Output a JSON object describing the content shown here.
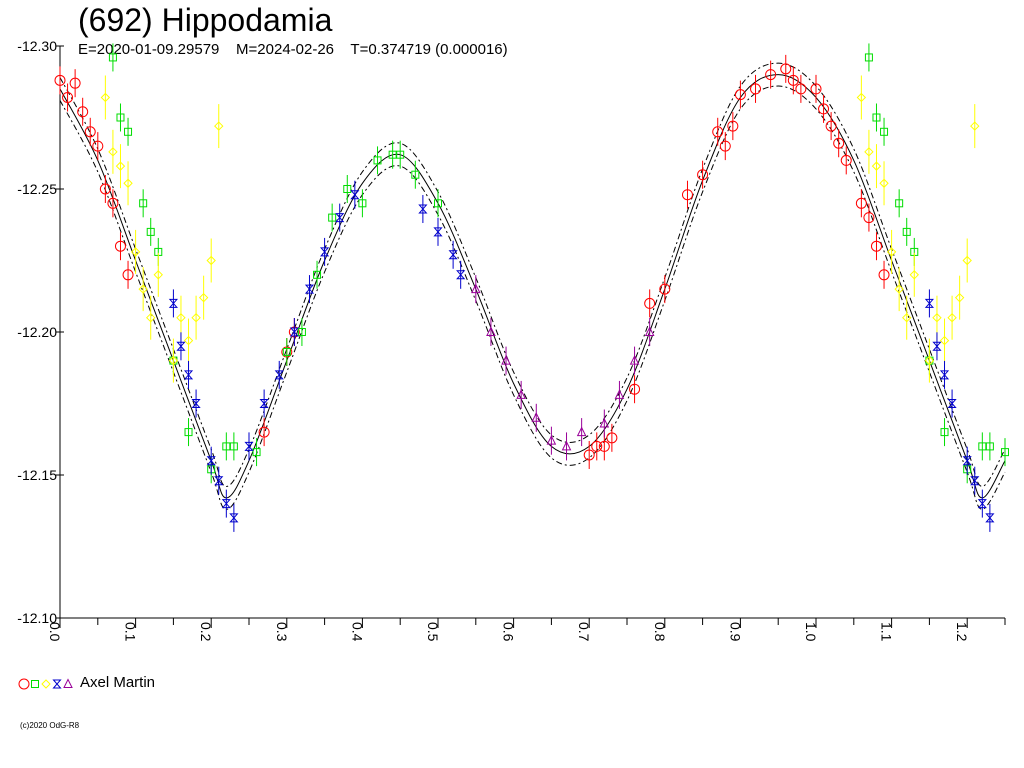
{
  "title": "(692) Hippodamia",
  "subtitle": "E=2020-01-09.29579    M=2024-02-26    T=0.374719 (0.000016)",
  "credit": "(c)2020 OdG-R8",
  "legend": {
    "label": "Axel Martin",
    "markers": [
      {
        "shape": "circle",
        "color": "#ff0000"
      },
      {
        "shape": "square",
        "color": "#00dd00"
      },
      {
        "shape": "diamond",
        "color": "#ffff00"
      },
      {
        "shape": "hourglass",
        "color": "#0000cc"
      },
      {
        "shape": "triangle",
        "color": "#990099"
      }
    ]
  },
  "chart_data": {
    "type": "scatter",
    "xlabel": "",
    "ylabel": "",
    "xlim": [
      0,
      1.25
    ],
    "ylim": [
      -12.3,
      -12.1
    ],
    "y_inverted": true,
    "x_ticks": [
      "0.0",
      "0.1",
      "0.2",
      "0.3",
      "0.4",
      "0.5",
      "0.6",
      "0.7",
      "0.8",
      "0.9",
      "1.0",
      "1.1",
      "1.2"
    ],
    "y_ticks": [
      "-12.30",
      "-12.25",
      "-12.20",
      "-12.15",
      "-12.10"
    ],
    "fit_curve": {
      "phase": [
        0.0,
        0.05,
        0.1,
        0.15,
        0.2,
        0.22,
        0.25,
        0.3,
        0.35,
        0.4,
        0.45,
        0.5,
        0.55,
        0.6,
        0.65,
        0.7,
        0.75,
        0.8,
        0.85,
        0.9,
        0.95,
        1.0,
        1.05,
        1.1,
        1.15,
        1.2,
        1.22,
        1.25
      ],
      "mag": [
        -12.285,
        -12.26,
        -12.225,
        -12.19,
        -12.155,
        -12.142,
        -12.155,
        -12.19,
        -12.225,
        -12.252,
        -12.262,
        -12.245,
        -12.215,
        -12.182,
        -12.16,
        -12.16,
        -12.18,
        -12.215,
        -12.253,
        -12.282,
        -12.29,
        -12.282,
        -12.26,
        -12.225,
        -12.19,
        -12.155,
        -12.142,
        -12.155
      ]
    },
    "series": [
      {
        "name": "",
        "color": "#ff0000",
        "shape": "circle",
        "x": [
          0.0,
          0.01,
          0.02,
          0.03,
          0.04,
          0.05,
          0.06,
          0.07,
          0.08,
          0.09,
          0.27,
          0.3,
          0.31,
          0.7,
          0.71,
          0.72,
          0.73,
          0.76,
          0.78,
          0.8,
          0.83,
          0.85,
          0.87,
          0.88,
          0.89,
          0.9,
          0.92,
          0.94,
          0.96,
          0.97,
          0.98,
          1.0,
          1.01,
          1.02,
          1.03,
          1.04,
          1.06,
          1.07,
          1.08,
          1.09
        ],
        "y": [
          -12.288,
          -12.282,
          -12.287,
          -12.277,
          -12.27,
          -12.265,
          -12.25,
          -12.245,
          -12.23,
          -12.22,
          -12.165,
          -12.193,
          -12.2,
          -12.157,
          -12.16,
          -12.16,
          -12.163,
          -12.18,
          -12.21,
          -12.215,
          -12.248,
          -12.255,
          -12.27,
          -12.265,
          -12.272,
          -12.283,
          -12.285,
          -12.29,
          -12.292,
          -12.288,
          -12.285,
          -12.285,
          -12.278,
          -12.272,
          -12.266,
          -12.26,
          -12.245,
          -12.24,
          -12.23,
          -12.22
        ]
      },
      {
        "name": "",
        "color": "#00dd00",
        "shape": "square",
        "x": [
          0.07,
          0.08,
          0.09,
          0.11,
          0.12,
          0.13,
          0.15,
          0.17,
          0.2,
          0.22,
          0.23,
          0.26,
          0.3,
          0.32,
          0.34,
          0.36,
          0.38,
          0.4,
          0.42,
          0.44,
          0.45,
          0.47,
          0.5,
          1.07,
          1.08,
          1.09,
          1.11,
          1.12,
          1.13,
          1.15,
          1.17,
          1.2,
          1.22,
          1.23,
          1.25
        ],
        "y": [
          -12.296,
          -12.275,
          -12.27,
          -12.245,
          -12.235,
          -12.228,
          -12.19,
          -12.165,
          -12.152,
          -12.16,
          -12.16,
          -12.158,
          -12.193,
          -12.2,
          -12.22,
          -12.24,
          -12.25,
          -12.245,
          -12.26,
          -12.262,
          -12.262,
          -12.255,
          -12.245,
          -12.296,
          -12.275,
          -12.27,
          -12.245,
          -12.235,
          -12.228,
          -12.19,
          -12.165,
          -12.152,
          -12.16,
          -12.16,
          -12.158
        ]
      },
      {
        "name": "",
        "color": "#ffff00",
        "shape": "diamond",
        "x": [
          0.06,
          0.07,
          0.08,
          0.09,
          0.1,
          0.11,
          0.12,
          0.13,
          0.15,
          0.16,
          0.17,
          0.18,
          0.19,
          0.2,
          0.21,
          1.06,
          1.07,
          1.08,
          1.09,
          1.1,
          1.11,
          1.12,
          1.13,
          1.15,
          1.16,
          1.17,
          1.18,
          1.19,
          1.2,
          1.21
        ],
        "y": [
          -12.282,
          -12.263,
          -12.258,
          -12.252,
          -12.228,
          -12.215,
          -12.205,
          -12.22,
          -12.19,
          -12.205,
          -12.197,
          -12.205,
          -12.212,
          -12.225,
          -12.272,
          -12.282,
          -12.263,
          -12.258,
          -12.252,
          -12.228,
          -12.215,
          -12.205,
          -12.22,
          -12.19,
          -12.205,
          -12.197,
          -12.205,
          -12.212,
          -12.225,
          -12.272
        ]
      },
      {
        "name": "",
        "color": "#0000cc",
        "shape": "hourglass",
        "x": [
          0.15,
          0.16,
          0.17,
          0.18,
          0.2,
          0.21,
          0.22,
          0.23,
          0.25,
          0.27,
          0.29,
          0.31,
          0.33,
          0.35,
          0.37,
          0.39,
          0.48,
          0.5,
          0.52,
          0.53,
          1.15,
          1.16,
          1.17,
          1.18,
          1.2,
          1.21,
          1.22,
          1.23
        ],
        "y": [
          -12.21,
          -12.195,
          -12.185,
          -12.175,
          -12.155,
          -12.148,
          -12.14,
          -12.135,
          -12.16,
          -12.175,
          -12.185,
          -12.2,
          -12.215,
          -12.228,
          -12.24,
          -12.248,
          -12.243,
          -12.235,
          -12.227,
          -12.22,
          -12.21,
          -12.195,
          -12.185,
          -12.175,
          -12.155,
          -12.148,
          -12.14,
          -12.135
        ]
      },
      {
        "name": "",
        "color": "#990099",
        "shape": "triangle",
        "x": [
          0.55,
          0.57,
          0.59,
          0.61,
          0.63,
          0.65,
          0.67,
          0.69,
          0.72,
          0.74,
          0.76,
          0.78
        ],
        "y": [
          -12.215,
          -12.2,
          -12.19,
          -12.178,
          -12.17,
          -12.162,
          -12.16,
          -12.165,
          -12.168,
          -12.178,
          -12.19,
          -12.2
        ]
      }
    ]
  }
}
